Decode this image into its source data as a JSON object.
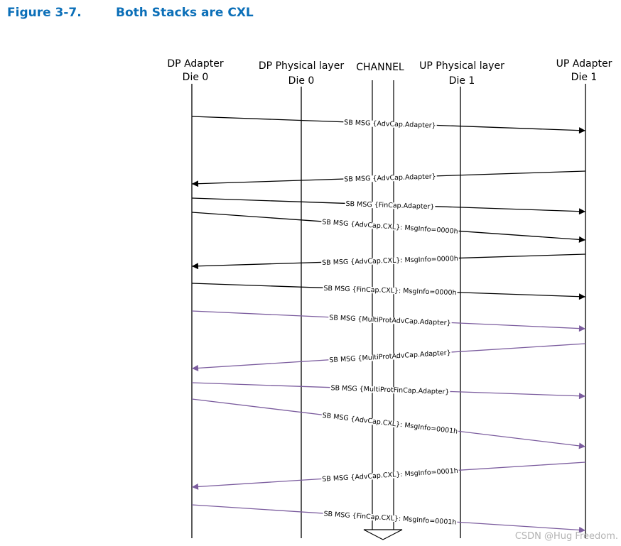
{
  "figure": {
    "number": "Figure 3-7.",
    "title": "Both Stacks are CXL"
  },
  "lanes": [
    {
      "id": "dp_adapter",
      "line1": "DP Adapter",
      "line2": "Die 0"
    },
    {
      "id": "dp_phy",
      "line1": "DP Physical layer",
      "line2": "Die 0"
    },
    {
      "id": "channel",
      "line1": "CHANNEL",
      "line2": ""
    },
    {
      "id": "up_phy",
      "line1": "UP Physical layer",
      "line2": "Die 1"
    },
    {
      "id": "up_adapter",
      "line1": "UP Adapter",
      "line2": "Die 1"
    }
  ],
  "colors": {
    "black": "#000000",
    "purple": "#7b5c9e",
    "title": "#0b6fb8"
  },
  "messages": [
    {
      "label": "SB MSG {AdvCap.Adapter}",
      "direction": "dp-to-up",
      "color": "black"
    },
    {
      "label": "SB MSG {AdvCap.Adapter}",
      "direction": "up-to-dp",
      "color": "black"
    },
    {
      "label": "SB MSG {FinCap.Adapter}",
      "direction": "dp-to-up",
      "color": "black"
    },
    {
      "label": "SB MSG {AdvCap.CXL}: MsgInfo=0000h",
      "direction": "dp-to-up",
      "color": "black"
    },
    {
      "label": "SB MSG {AdvCap.CXL}: MsgInfo=0000h",
      "direction": "up-to-dp",
      "color": "black"
    },
    {
      "label": "SB MSG {FinCap.CXL}: MsgInfo=0000h",
      "direction": "dp-to-up",
      "color": "black"
    },
    {
      "label": "SB MSG {MultiProtAdvCap.Adapter}",
      "direction": "dp-to-up",
      "color": "purple"
    },
    {
      "label": "SB MSG {MultiProtAdvCap.Adapter}",
      "direction": "up-to-dp",
      "color": "purple"
    },
    {
      "label": "SB MSG {MultiProtFinCap.Adapter}",
      "direction": "dp-to-up",
      "color": "purple"
    },
    {
      "label": "SB MSG {AdvCap.CXL}: MsgInfo=0001h",
      "direction": "dp-to-up",
      "color": "purple"
    },
    {
      "label": "SB MSG {AdvCap.CXL}: MsgInfo=0001h",
      "direction": "up-to-dp",
      "color": "purple"
    },
    {
      "label": "SB MSG {FinCap.CXL}: MsgInfo=0001h",
      "direction": "dp-to-up",
      "color": "purple"
    }
  ],
  "watermark": "CSDN @Hug Freedom."
}
